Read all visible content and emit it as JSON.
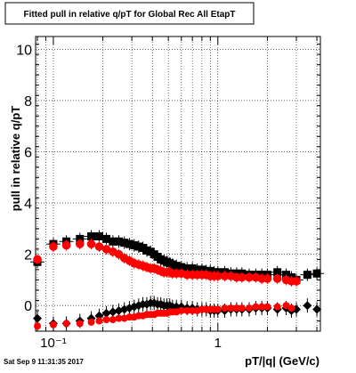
{
  "chart_data": {
    "type": "scatter",
    "title": "Fitted pull in relative q/pT for Global Rec All EtapT",
    "xlabel": "pT/|q| (GeV/c)",
    "ylabel": "pull in relative q/pT",
    "x_scale": "log",
    "xlim": [
      0.078,
      4.2
    ],
    "ylim": [
      -1.0,
      10.5
    ],
    "x_ticks": [
      {
        "value": 0.1,
        "label": "10⁻¹"
      },
      {
        "value": 1,
        "label": "1"
      }
    ],
    "y_ticks": [
      0,
      2,
      4,
      6,
      8,
      10
    ],
    "grid": true,
    "timestamp": "Sat Sep  9 11:31:35 2017",
    "series": [
      {
        "color": "#000000",
        "marker": "square",
        "x": [
          0.08,
          0.1,
          0.12,
          0.145,
          0.17,
          0.19,
          0.21,
          0.23,
          0.25,
          0.27,
          0.29,
          0.31,
          0.33,
          0.35,
          0.37,
          0.39,
          0.41,
          0.43,
          0.45,
          0.47,
          0.49,
          0.51,
          0.53,
          0.56,
          0.6,
          0.65,
          0.7,
          0.75,
          0.8,
          0.85,
          0.9,
          0.95,
          1.0,
          1.1,
          1.2,
          1.3,
          1.4,
          1.55,
          1.7,
          1.85,
          2.0,
          2.3,
          2.6,
          2.8,
          3.0,
          3.5,
          4.0
        ],
        "y": [
          1.7,
          2.4,
          2.5,
          2.6,
          2.7,
          2.7,
          2.6,
          2.5,
          2.5,
          2.45,
          2.4,
          2.35,
          2.3,
          2.25,
          2.15,
          2.1,
          2.0,
          1.9,
          1.8,
          1.75,
          1.7,
          1.65,
          1.6,
          1.55,
          1.5,
          1.45,
          1.45,
          1.4,
          1.4,
          1.35,
          1.35,
          1.3,
          1.3,
          1.3,
          1.25,
          1.25,
          1.25,
          1.2,
          1.2,
          1.2,
          1.2,
          1.3,
          1.2,
          1.1,
          1.0,
          1.2,
          1.25
        ]
      },
      {
        "color": "#ff0000",
        "marker": "circle",
        "x": [
          0.08,
          0.1,
          0.12,
          0.145,
          0.17,
          0.19,
          0.21,
          0.23,
          0.25,
          0.27,
          0.29,
          0.31,
          0.33,
          0.35,
          0.37,
          0.39,
          0.41,
          0.43,
          0.45,
          0.47,
          0.49,
          0.51,
          0.53,
          0.56,
          0.6,
          0.65,
          0.7,
          0.75,
          0.8,
          0.85,
          0.9,
          0.95,
          1.0,
          1.1,
          1.2,
          1.3,
          1.4,
          1.55,
          1.7,
          1.85,
          2.0,
          2.3,
          2.6,
          2.8,
          3.0
        ],
        "y": [
          1.8,
          2.3,
          2.35,
          2.4,
          2.4,
          2.3,
          2.2,
          2.1,
          2.0,
          1.85,
          1.75,
          1.65,
          1.6,
          1.55,
          1.5,
          1.45,
          1.45,
          1.4,
          1.35,
          1.3,
          1.3,
          1.3,
          1.25,
          1.25,
          1.25,
          1.2,
          1.2,
          1.2,
          1.2,
          1.2,
          1.15,
          1.15,
          1.15,
          1.15,
          1.15,
          1.1,
          1.1,
          1.1,
          1.1,
          1.05,
          1.05,
          1.05,
          1.0,
          0.95,
          0.95
        ]
      },
      {
        "color": "#000000",
        "marker": "diamond",
        "x": [
          0.08,
          0.1,
          0.12,
          0.145,
          0.17,
          0.19,
          0.21,
          0.23,
          0.25,
          0.27,
          0.29,
          0.31,
          0.33,
          0.35,
          0.37,
          0.39,
          0.41,
          0.43,
          0.45,
          0.47,
          0.49,
          0.51,
          0.53,
          0.56,
          0.6,
          0.65,
          0.7,
          0.75,
          0.8,
          0.85,
          0.9,
          0.95,
          1.0,
          1.1,
          1.2,
          1.3,
          1.4,
          1.55,
          1.7,
          1.85,
          2.0,
          2.3,
          2.6,
          2.8,
          3.0,
          3.5,
          4.0
        ],
        "y": [
          -0.5,
          -0.7,
          -0.7,
          -0.6,
          -0.5,
          -0.4,
          -0.3,
          -0.25,
          -0.2,
          -0.15,
          -0.1,
          -0.05,
          0.0,
          0.05,
          0.05,
          0.1,
          0.1,
          0.05,
          0.05,
          0.0,
          0.0,
          0.0,
          -0.05,
          -0.05,
          -0.05,
          -0.1,
          -0.1,
          -0.15,
          -0.15,
          -0.15,
          -0.2,
          -0.2,
          -0.2,
          -0.2,
          -0.15,
          -0.15,
          -0.15,
          -0.15,
          -0.1,
          -0.1,
          -0.1,
          -0.15,
          -0.1,
          -0.2,
          -0.15,
          0.0,
          -0.15
        ]
      },
      {
        "color": "#ff0000",
        "marker": "circle-small",
        "x": [
          0.08,
          0.1,
          0.12,
          0.145,
          0.17,
          0.19,
          0.21,
          0.23,
          0.25,
          0.27,
          0.29,
          0.31,
          0.33,
          0.35,
          0.37,
          0.39,
          0.41,
          0.43,
          0.45,
          0.47,
          0.49,
          0.51,
          0.53,
          0.56,
          0.6,
          0.65,
          0.7,
          0.75,
          0.8,
          0.85,
          0.9,
          0.95,
          1.0,
          1.1,
          1.2,
          1.3,
          1.4,
          1.55,
          1.7,
          1.85,
          2.0,
          2.3,
          2.6,
          2.8
        ],
        "y": [
          -0.8,
          -0.75,
          -0.7,
          -0.7,
          -0.65,
          -0.6,
          -0.55,
          -0.55,
          -0.5,
          -0.5,
          -0.45,
          -0.45,
          -0.4,
          -0.4,
          -0.35,
          -0.35,
          -0.35,
          -0.3,
          -0.3,
          -0.3,
          -0.3,
          -0.25,
          -0.25,
          -0.25,
          -0.2,
          -0.2,
          -0.2,
          -0.2,
          -0.15,
          -0.15,
          -0.15,
          -0.15,
          -0.15,
          -0.1,
          -0.1,
          -0.1,
          -0.1,
          -0.1,
          -0.05,
          -0.05,
          -0.05,
          -0.05,
          0.0,
          -0.1
        ]
      }
    ]
  }
}
